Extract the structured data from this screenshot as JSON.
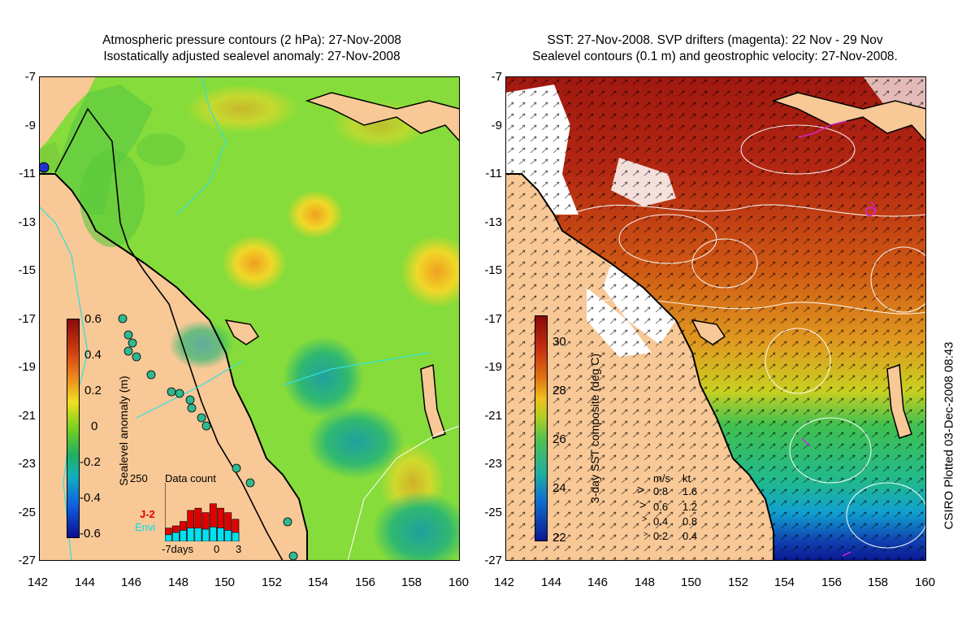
{
  "left_panel": {
    "title_line1": "Atmospheric pressure contours (2 hPa): 27-Nov-2008",
    "title_line2": "Isostatically adjusted sealevel anomaly: 27-Nov-2008",
    "colorbar": {
      "label": "Sealevel anomaly (m)",
      "ticks": [
        "0.6",
        "0.4",
        "0.2",
        "0",
        "-0.2",
        "-0.4",
        "-0.6"
      ],
      "range": [
        -0.6,
        0.6
      ]
    },
    "data_count": {
      "title": "Data count",
      "ymax_label": "250",
      "x_labels": [
        "-7days",
        "0",
        "3"
      ],
      "legend": [
        {
          "name": "J-2",
          "color": "#e00000"
        },
        {
          "name": "Envi",
          "color": "#00e0f0"
        }
      ],
      "j2_values": [
        60,
        70,
        90,
        140,
        150,
        130,
        170,
        150,
        130,
        100
      ],
      "envi_values": [
        30,
        40,
        50,
        60,
        60,
        55,
        65,
        60,
        50,
        40
      ]
    }
  },
  "right_panel": {
    "title_line1": "SST: 27-Nov-2008. SVP drifters (magenta): 22 Nov - 29 Nov",
    "title_line2": "Sealevel contours (0.1 m) and geostrophic velocity: 27-Nov-2008.",
    "colorbar": {
      "label": "3-day SST composite (deg C)",
      "ticks": [
        "30",
        "28",
        "26",
        "24",
        "22"
      ],
      "range": [
        22,
        31
      ]
    },
    "velocity_legend": {
      "header_ms": "m/s",
      "header_kt": "kt",
      "rows": [
        {
          "ms": "0.8",
          "kt": "1.6"
        },
        {
          "ms": "0.6",
          "kt": "1.2"
        },
        {
          "ms": "0.4",
          "kt": "0.8"
        },
        {
          "ms": "0.2",
          "kt": "0.4"
        }
      ]
    }
  },
  "axes": {
    "lat_ticks": [
      "-7",
      "-9",
      "-11",
      "-13",
      "-15",
      "-17",
      "-19",
      "-21",
      "-23",
      "-25",
      "-27"
    ],
    "lon_ticks": [
      "142",
      "144",
      "146",
      "148",
      "150",
      "152",
      "154",
      "156",
      "158",
      "160"
    ],
    "lat_range": [
      -27,
      -7
    ],
    "lon_range": [
      142,
      160
    ]
  },
  "credit": "CSIRO Plotted 03-Dec-2008 08:43",
  "colors": {
    "land": "#f8c896",
    "ocean_mid": "#7ee02a",
    "ocean_high": "#f0d020",
    "ocean_low": "#2fb870",
    "sst_hot": "#a82010",
    "sst_warm": "#d05a10",
    "sst_cool": "#30c060",
    "sst_cold": "#1040b0"
  }
}
